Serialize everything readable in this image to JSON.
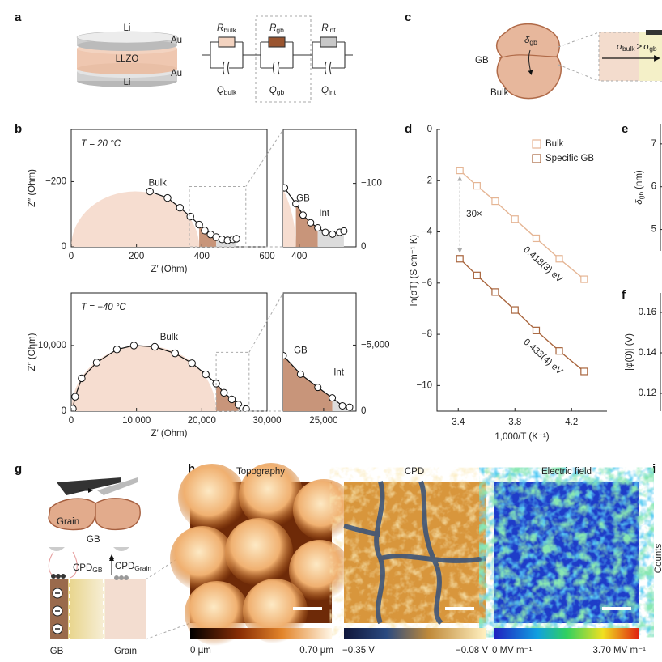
{
  "panel_letters": [
    "a",
    "b",
    "c",
    "d",
    "e",
    "f",
    "g",
    "h",
    "i"
  ],
  "a": {
    "cell": [
      "Li",
      "Au",
      "LLZO",
      "Li",
      "Au"
    ],
    "circuit": [
      {
        "R": "R",
        "R_sub": "bulk",
        "Q": "Q",
        "Q_sub": "bulk"
      },
      {
        "R": "R",
        "R_sub": "gb",
        "Q": "Q",
        "Q_sub": "gb"
      },
      {
        "R": "R",
        "R_sub": "int",
        "Q": "Q",
        "Q_sub": "int"
      }
    ]
  },
  "c": {
    "delta": "δ",
    "delta_sub": "gb",
    "gb": "GB",
    "bulk": "Bulk",
    "sigma1": "σ",
    "sigma1_sub": "bulk",
    "gt": ">",
    "sigma2": "σ",
    "sigma2_sub": "gb"
  },
  "g": {
    "grain": "Grain",
    "gb_top": "GB",
    "cpd1": "CPD",
    "cpd1_sub": "GB",
    "cpd2": "CPD",
    "cpd2_sub": "Grain",
    "bottom": [
      "GB",
      "Grain"
    ]
  },
  "h": {
    "images": [
      {
        "title": "Topography",
        "min": "0 µm",
        "max": "0.70 µm"
      },
      {
        "title": "CPD",
        "min": "−0.35 V",
        "max": "−0.08 V"
      },
      {
        "title": "Electric field",
        "min": "0 MV m⁻¹",
        "max": "3.70 MV m⁻¹"
      }
    ]
  },
  "i": {
    "y_label": "Counts"
  },
  "chart_data": [
    {
      "type": "scatter",
      "annotation": "T = 20 °C",
      "x_label": "Z′ (Ohm)",
      "y_label": "Z″ (Ohm)",
      "region_labels": [
        "Bulk",
        "GB",
        "Int"
      ],
      "x": [
        241,
        295,
        333,
        365,
        392,
        409,
        427,
        444,
        462,
        479,
        496,
        506
      ],
      "values": [
        -170,
        -150,
        -120,
        -93,
        -68,
        -50,
        -38,
        -30,
        -23,
        -20,
        -23,
        -25
      ],
      "xlim": [
        0,
        600
      ],
      "xticks": [
        0,
        200,
        400,
        600
      ],
      "ylim": [
        0,
        -360
      ],
      "yticks": [
        0,
        {
          "value": -200,
          "label": "−200"
        }
      ],
      "inset": {
        "xlim": [
          362,
          535
        ],
        "xticks": [
          400
        ],
        "ylim": [
          0,
          -185
        ],
        "yticks": [
          0,
          {
            "value": -100,
            "label": "−100"
          }
        ]
      }
    },
    {
      "type": "scatter",
      "annotation": "T = −40 °C",
      "x_label": "Z′ (Ohm)",
      "y_label": "Z″ (Ohm)",
      "region_labels": [
        "Bulk",
        "GB",
        "Int"
      ],
      "x": [
        250,
        600,
        1600,
        3900,
        7000,
        9600,
        12800,
        15900,
        18500,
        20600,
        22200,
        23400,
        24600,
        25600,
        26300,
        26800
      ],
      "values": [
        -370,
        -2200,
        -5000,
        -7400,
        -9400,
        -10000,
        -9800,
        -8800,
        -7300,
        -5600,
        -4200,
        -2800,
        -1800,
        -1000,
        -400,
        -300
      ],
      "xlim": [
        0,
        30000
      ],
      "xticks": [
        0,
        {
          "value": 10000,
          "label": "10,000"
        },
        {
          "value": 20000,
          "label": "20,000"
        },
        {
          "value": 30000,
          "label": "30,000"
        }
      ],
      "ylim": [
        0,
        -18000
      ],
      "yticks": [
        0,
        {
          "value": -10000,
          "label": "−10,000"
        }
      ],
      "inset": {
        "xlim": [
          22200,
          27250
        ],
        "xticks": [
          {
            "value": 25000,
            "label": "25,000"
          }
        ],
        "ylim": [
          0,
          -8950
        ],
        "yticks": [
          0,
          {
            "value": -5000,
            "label": "−5,000"
          }
        ]
      }
    },
    {
      "type": "line",
      "x_label": "1,000/T (K⁻¹)",
      "y_label": "ln(σT) (S cm⁻¹ K)",
      "legend": "upper right",
      "annotations": {
        "ratio": "30×",
        "ea_bulk": "0.418(3) eV",
        "ea_gb": "0.433(4) eV"
      },
      "x": [
        3.411,
        3.532,
        3.661,
        3.8,
        3.95,
        4.113,
        4.289
      ],
      "series": [
        {
          "name": "Bulk",
          "color": "#e5b594",
          "values": [
            -1.6,
            -2.2,
            -2.8,
            -3.5,
            -4.25,
            -5.05,
            -5.85
          ]
        },
        {
          "name": "Specific GB",
          "color": "#a8643c",
          "values": [
            -5.05,
            -5.7,
            -6.35,
            -7.05,
            -7.85,
            -8.65,
            -9.45
          ]
        }
      ],
      "xlim": [
        3.25,
        4.45
      ],
      "xticks": [
        3.4,
        3.8,
        4.2
      ],
      "ylim": [
        -11,
        0
      ],
      "yticks": [
        0,
        {
          "value": -2,
          "label": "−2"
        },
        {
          "value": -4,
          "label": "−4"
        },
        {
          "value": -6,
          "label": "−6"
        },
        {
          "value": -8,
          "label": "−8"
        },
        {
          "value": -10,
          "label": "−10"
        }
      ]
    },
    {
      "type": "axis",
      "y_label": "δ",
      "y_label_sub": "gb",
      "y_label_unit": "(nm)",
      "ylim": [
        4.5,
        7.47
      ],
      "yticks": [
        7,
        6,
        5
      ]
    },
    {
      "type": "axis",
      "y_label": "|φ(0)| (V)",
      "ylim": [
        0.1112,
        0.1696
      ],
      "yticks": [
        0.16,
        0.14,
        0.12
      ]
    }
  ]
}
